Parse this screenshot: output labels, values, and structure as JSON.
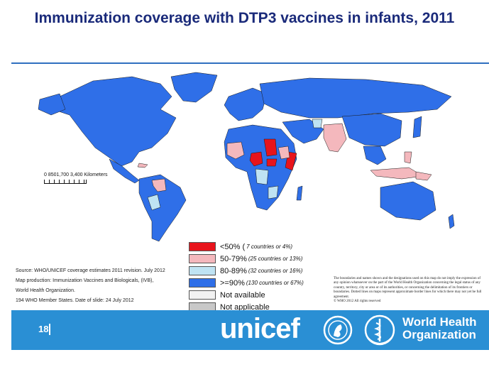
{
  "slide": {
    "title": "Immunization coverage with DTP3 vaccines in infants, 2011",
    "page_number": "18"
  },
  "map": {
    "scale_label": "0   8501,700      3,400 Kilometers",
    "colors": {
      "lt50": "#e8141c",
      "50_79": "#f4b8bd",
      "80_89": "#bfe3f3",
      "gte90": "#2f6fe8",
      "not_available": "#f2f2f2",
      "not_applicable": "#c8c8c8",
      "ocean": "#ffffff"
    }
  },
  "legend": {
    "items": [
      {
        "label": "<50% (",
        "note": "7 countries or 4%)",
        "color": "#e8141c"
      },
      {
        "label": "50-79%",
        "note": "(25 countries or 13%)",
        "color": "#f4b8bd"
      },
      {
        "label": "80-89%",
        "note": "(32 countries or 16%)",
        "color": "#bfe3f3"
      },
      {
        "label": ">=90%",
        "note": "(130 countries or 67%)",
        "color": "#2f6fe8"
      },
      {
        "label": "Not available",
        "note": "",
        "color": "#f2f2f2"
      },
      {
        "label": "Not applicable",
        "note": "",
        "color": "#c8c8c8"
      }
    ]
  },
  "source": {
    "line1": "Source: WHO/UNICEF  coverage  estimates 2011 revision.  July 2012",
    "line2": "Map production: Immunization Vaccines and Biologicals, (IVB),",
    "line3": "World Health Organization.",
    "line4": "194 WHO Member States. Date of slide: 24 July 2012"
  },
  "disclaimer": {
    "text": "The boundaries and names shown and the designations used on this map do not imply the expression of any opinion whatsoever on the part of the World Health Organization concerning the legal status of any country, territory, city or area or of its authorities, or concerning the delimitation of its frontiers or boundaries. Dotted lines on maps represent approximate border lines for which there may not yet be full agreement.",
    "copyright": "© WHO 2012 All rights reserved"
  },
  "footer": {
    "unicef": "unicef",
    "who_line1": "World Health",
    "who_line2": "Organization"
  }
}
